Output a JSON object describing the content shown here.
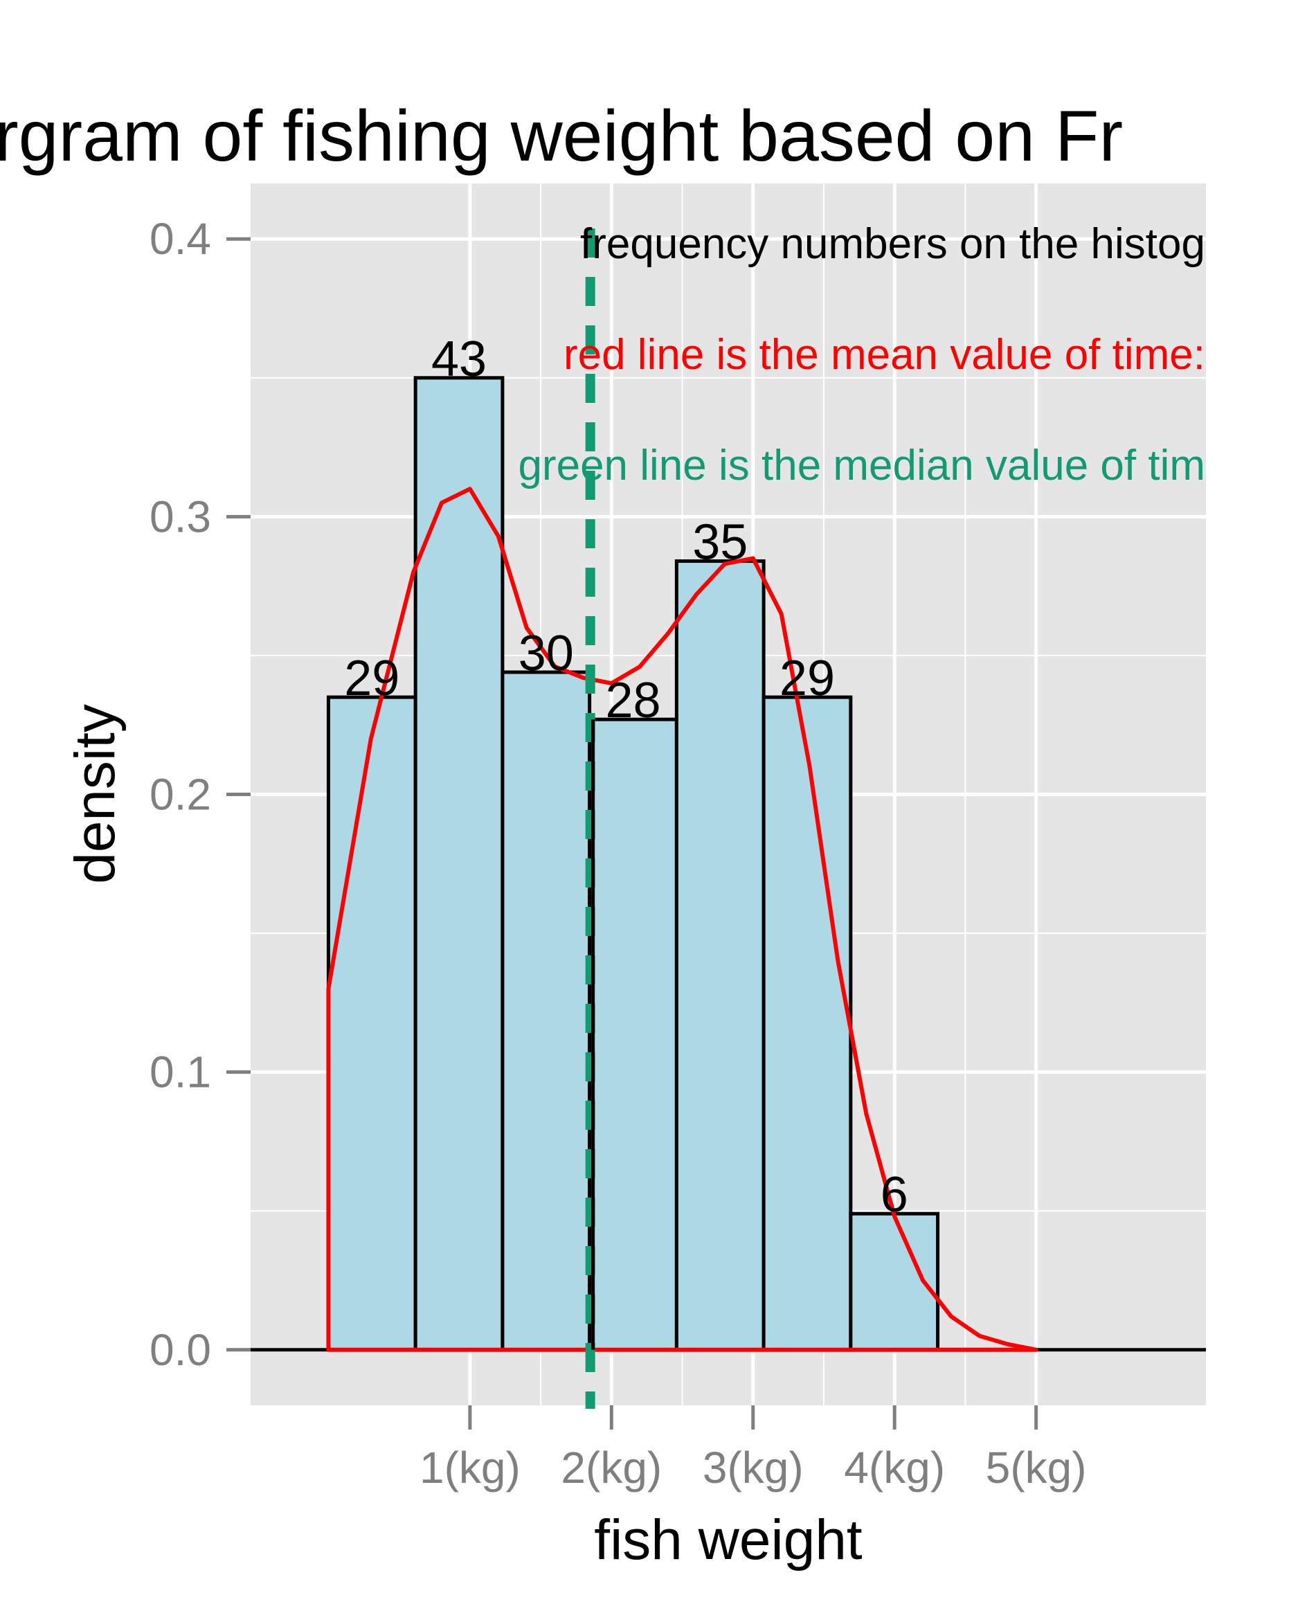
{
  "chart_data": {
    "type": "bar",
    "title": "rgram of fishing weight based on Fr",
    "xlabel": "fish weight",
    "ylabel": "density",
    "x_ticks": [
      {
        "x": 1,
        "label": "1(kg)"
      },
      {
        "x": 2,
        "label": "2(kg)"
      },
      {
        "x": 3,
        "label": "3(kg)"
      },
      {
        "x": 4,
        "label": "4(kg)"
      },
      {
        "x": 5,
        "label": "5(kg)"
      }
    ],
    "y_ticks": [
      {
        "y": 0.0,
        "label": "0.0"
      },
      {
        "y": 0.1,
        "label": "0.1"
      },
      {
        "y": 0.2,
        "label": "0.2"
      },
      {
        "y": 0.3,
        "label": "0.3"
      },
      {
        "y": 0.4,
        "label": "0.4"
      }
    ],
    "xlim": [
      -0.55,
      6.2
    ],
    "ylim": [
      -0.02,
      0.42
    ],
    "grid": true,
    "bins": [
      {
        "x_start": 0.0,
        "x_end": 0.615,
        "density": 0.235,
        "count": 29
      },
      {
        "x_start": 0.615,
        "x_end": 1.23,
        "density": 0.35,
        "count": 43
      },
      {
        "x_start": 1.23,
        "x_end": 1.845,
        "density": 0.244,
        "count": 30
      },
      {
        "x_start": 1.845,
        "x_end": 2.46,
        "density": 0.227,
        "count": 28
      },
      {
        "x_start": 2.46,
        "x_end": 3.075,
        "density": 0.284,
        "count": 35
      },
      {
        "x_start": 3.075,
        "x_end": 3.69,
        "density": 0.235,
        "count": 29
      },
      {
        "x_start": 3.69,
        "x_end": 4.305,
        "density": 0.049,
        "count": 6
      }
    ],
    "density_curve": {
      "x": [
        0.0,
        0.3,
        0.6,
        0.8,
        1.0,
        1.2,
        1.4,
        1.6,
        1.8,
        2.0,
        2.2,
        2.4,
        2.6,
        2.8,
        3.0,
        3.2,
        3.4,
        3.6,
        3.8,
        4.0,
        4.2,
        4.4,
        4.6,
        4.8,
        5.0
      ],
      "y": [
        0.13,
        0.22,
        0.28,
        0.305,
        0.31,
        0.293,
        0.26,
        0.246,
        0.242,
        0.24,
        0.246,
        0.258,
        0.272,
        0.283,
        0.285,
        0.265,
        0.21,
        0.14,
        0.085,
        0.048,
        0.025,
        0.012,
        0.005,
        0.002,
        0.0
      ]
    },
    "mean_line": {
      "x": 1.85,
      "color": "#ff0000"
    },
    "median_line": {
      "x": 1.85,
      "color": "#129b72"
    },
    "annotations": [
      {
        "text": "frequency numbers on the histog",
        "color": "#000000"
      },
      {
        "text": "red line is the mean value of time:",
        "color": "#ff0000"
      },
      {
        "text": "green line is the median value of tim",
        "color": "#129b72"
      }
    ],
    "colors": {
      "bar_fill": "#add8e6",
      "bar_stroke": "#000000",
      "curve": "#ff0000",
      "panel_bg": "#e5e5e5",
      "grid": "#ffffff"
    }
  }
}
